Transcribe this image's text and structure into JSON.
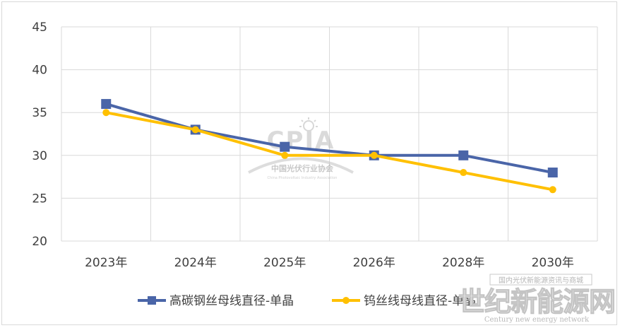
{
  "chart_data": {
    "type": "line",
    "categories": [
      "2023年",
      "2024年",
      "2025年",
      "2026年",
      "2028年",
      "2030年"
    ],
    "ylim": [
      20,
      45
    ],
    "yticks": [
      20,
      25,
      30,
      35,
      40,
      45
    ],
    "grid": true,
    "legend_position": "bottom",
    "series": [
      {
        "name": "高碳钢丝母线直径-单晶",
        "values": [
          36,
          33,
          31,
          30,
          30,
          28
        ],
        "color": "#4a65a8",
        "marker": "square"
      },
      {
        "name": "钨丝线母线直径-单晶",
        "values": [
          35,
          33,
          30,
          30,
          28,
          26
        ],
        "color": "#ffc000",
        "marker": "circle"
      }
    ]
  },
  "watermark": {
    "logo_text": "CPIA",
    "org_cn": "中国光伏行业协会",
    "org_en": "China Photovoltaic Industry Association",
    "brand_cn": "世纪新能源网",
    "brand_en": "Century new energy network",
    "brand_tag": "国内光伏新能源资讯与商城"
  }
}
